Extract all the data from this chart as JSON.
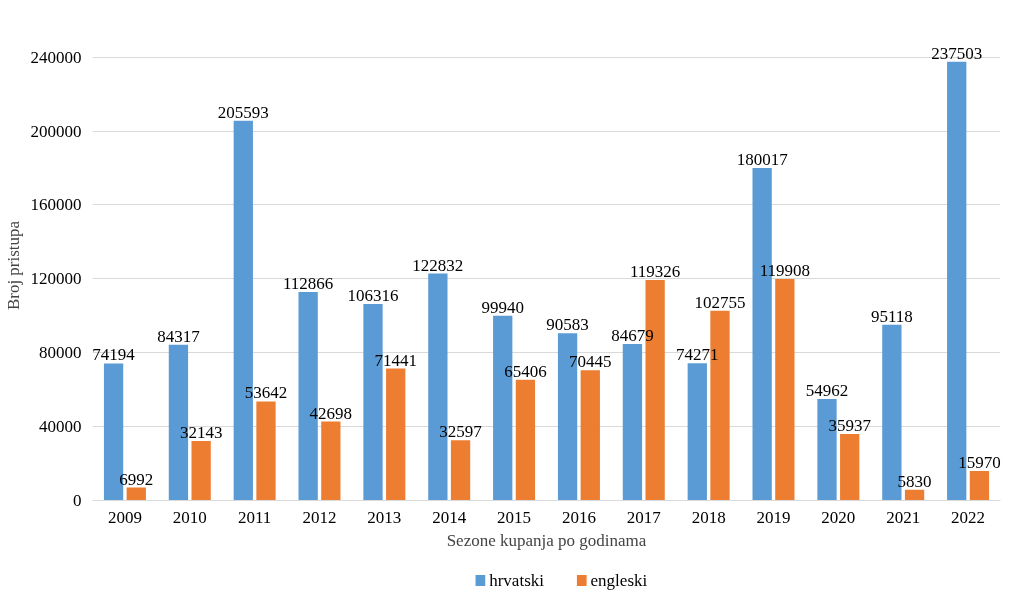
{
  "chart_data": {
    "type": "bar",
    "xlabel": "Sezone kupanja po godinama",
    "ylabel": "Broj pristupa",
    "categories": [
      "2009",
      "2010",
      "2011",
      "2012",
      "2013",
      "2014",
      "2015",
      "2016",
      "2017",
      "2018",
      "2019",
      "2020",
      "2021",
      "2022"
    ],
    "series": [
      {
        "name": "hrvatski",
        "color": "#5b9bd5",
        "values": [
          74194,
          84317,
          205593,
          112866,
          106316,
          122832,
          99940,
          90583,
          84679,
          74271,
          180017,
          54962,
          95118,
          237503
        ]
      },
      {
        "name": "engleski",
        "color": "#ed7d31",
        "values": [
          6992,
          32143,
          53642,
          42698,
          71441,
          32597,
          65406,
          70445,
          119326,
          102755,
          119908,
          35937,
          5830,
          15970
        ]
      }
    ],
    "ylim": [
      0,
      240000
    ],
    "yticks": [
      0,
      40000,
      80000,
      120000,
      160000,
      200000,
      240000
    ],
    "grid": "y",
    "legend": "bottom",
    "data_labels": true
  }
}
